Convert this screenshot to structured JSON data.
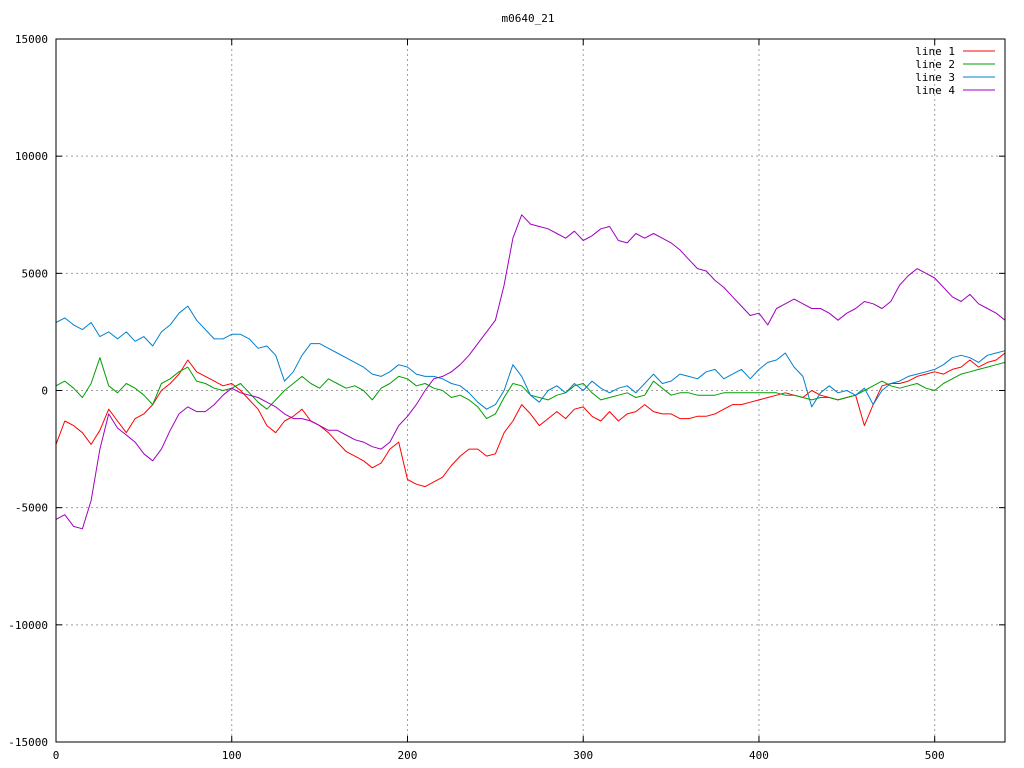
{
  "chart_data": {
    "type": "line",
    "title": "m0640_21",
    "xlabel": "",
    "ylabel": "",
    "xlim": [
      0,
      540
    ],
    "ylim": [
      -15000,
      15000
    ],
    "xticks": [
      0,
      100,
      200,
      300,
      400,
      500
    ],
    "yticks": [
      -15000,
      -10000,
      -5000,
      0,
      5000,
      10000,
      15000
    ],
    "grid": true,
    "legend_position": "top-right",
    "series": [
      {
        "name": "line 1",
        "color": "#ff0000",
        "x": [
          0,
          5,
          10,
          15,
          20,
          25,
          30,
          35,
          40,
          45,
          50,
          55,
          60,
          65,
          70,
          75,
          80,
          85,
          90,
          95,
          100,
          105,
          110,
          115,
          120,
          125,
          130,
          135,
          140,
          145,
          150,
          155,
          160,
          165,
          170,
          175,
          180,
          185,
          190,
          195,
          200,
          205,
          210,
          215,
          220,
          225,
          230,
          235,
          240,
          245,
          250,
          255,
          260,
          265,
          270,
          275,
          280,
          285,
          290,
          295,
          300,
          305,
          310,
          315,
          320,
          325,
          330,
          335,
          340,
          345,
          350,
          355,
          360,
          365,
          370,
          375,
          380,
          385,
          390,
          395,
          400,
          405,
          410,
          415,
          420,
          425,
          430,
          435,
          440,
          445,
          450,
          455,
          460,
          465,
          470,
          475,
          480,
          485,
          490,
          495,
          500,
          505,
          510,
          515,
          520,
          525,
          530,
          535,
          540
        ],
        "y": [
          -2300,
          -1300,
          -1500,
          -1800,
          -2300,
          -1700,
          -800,
          -1300,
          -1800,
          -1200,
          -1000,
          -600,
          0,
          300,
          700,
          1300,
          800,
          600,
          400,
          200,
          300,
          0,
          -400,
          -800,
          -1500,
          -1800,
          -1300,
          -1100,
          -800,
          -1300,
          -1500,
          -1800,
          -2200,
          -2600,
          -2800,
          -3000,
          -3300,
          -3100,
          -2500,
          -2200,
          -3800,
          -4000,
          -4100,
          -3900,
          -3700,
          -3200,
          -2800,
          -2500,
          -2500,
          -2800,
          -2700,
          -1800,
          -1300,
          -600,
          -1000,
          -1500,
          -1200,
          -900,
          -1200,
          -800,
          -700,
          -1100,
          -1300,
          -900,
          -1300,
          -1000,
          -900,
          -600,
          -900,
          -1000,
          -1000,
          -1200,
          -1200,
          -1100,
          -1100,
          -1000,
          -800,
          -600,
          -600,
          -500,
          -400,
          -300,
          -200,
          -100,
          -200,
          -300,
          0,
          -200,
          -300,
          -400,
          -300,
          -200,
          -1500,
          -600,
          200,
          300,
          300,
          400,
          600,
          700,
          800,
          700,
          900,
          1000,
          1300,
          1000,
          1200,
          1300,
          1600
        ]
      },
      {
        "name": "line 2",
        "color": "#00a000",
        "x": [
          0,
          5,
          10,
          15,
          20,
          25,
          30,
          35,
          40,
          45,
          50,
          55,
          60,
          65,
          70,
          75,
          80,
          85,
          90,
          95,
          100,
          105,
          110,
          115,
          120,
          125,
          130,
          135,
          140,
          145,
          150,
          155,
          160,
          165,
          170,
          175,
          180,
          185,
          190,
          195,
          200,
          205,
          210,
          215,
          220,
          225,
          230,
          235,
          240,
          245,
          250,
          255,
          260,
          265,
          270,
          275,
          280,
          285,
          290,
          295,
          300,
          305,
          310,
          315,
          320,
          325,
          330,
          335,
          340,
          345,
          350,
          355,
          360,
          365,
          370,
          375,
          380,
          385,
          390,
          395,
          400,
          405,
          410,
          415,
          420,
          425,
          430,
          435,
          440,
          445,
          450,
          455,
          460,
          465,
          470,
          475,
          480,
          485,
          490,
          495,
          500,
          505,
          510,
          515,
          520,
          525,
          530,
          535,
          540
        ],
        "y": [
          200,
          400,
          100,
          -300,
          300,
          1400,
          200,
          -100,
          300,
          100,
          -200,
          -600,
          300,
          500,
          800,
          1000,
          400,
          300,
          100,
          0,
          100,
          300,
          -100,
          -500,
          -800,
          -400,
          0,
          300,
          600,
          300,
          100,
          500,
          300,
          100,
          200,
          0,
          -400,
          100,
          300,
          600,
          500,
          200,
          300,
          100,
          0,
          -300,
          -200,
          -400,
          -700,
          -1200,
          -1000,
          -300,
          300,
          200,
          -200,
          -300,
          -400,
          -200,
          -100,
          200,
          300,
          -100,
          -400,
          -300,
          -200,
          -100,
          -300,
          -200,
          400,
          100,
          -200,
          -100,
          -100,
          -200,
          -200,
          -200,
          -100,
          -100,
          -100,
          -100,
          -100,
          -100,
          -100,
          -200,
          -200,
          -300,
          -400,
          -300,
          -300,
          -400,
          -300,
          -200,
          0,
          200,
          400,
          200,
          100,
          200,
          300,
          100,
          0,
          300,
          500,
          700,
          800,
          900,
          1000,
          1100,
          1200
        ]
      },
      {
        "name": "line 3",
        "color": "#0080d0",
        "x": [
          0,
          5,
          10,
          15,
          20,
          25,
          30,
          35,
          40,
          45,
          50,
          55,
          60,
          65,
          70,
          75,
          80,
          85,
          90,
          95,
          100,
          105,
          110,
          115,
          120,
          125,
          130,
          135,
          140,
          145,
          150,
          155,
          160,
          165,
          170,
          175,
          180,
          185,
          190,
          195,
          200,
          205,
          210,
          215,
          220,
          225,
          230,
          235,
          240,
          245,
          250,
          255,
          260,
          265,
          270,
          275,
          280,
          285,
          290,
          295,
          300,
          305,
          310,
          315,
          320,
          325,
          330,
          335,
          340,
          345,
          350,
          355,
          360,
          365,
          370,
          375,
          380,
          385,
          390,
          395,
          400,
          405,
          410,
          415,
          420,
          425,
          430,
          435,
          440,
          445,
          450,
          455,
          460,
          465,
          470,
          475,
          480,
          485,
          490,
          495,
          500,
          505,
          510,
          515,
          520,
          525,
          530,
          535,
          540
        ],
        "y": [
          2900,
          3100,
          2800,
          2600,
          2900,
          2300,
          2500,
          2200,
          2500,
          2100,
          2300,
          1900,
          2500,
          2800,
          3300,
          3600,
          3000,
          2600,
          2200,
          2200,
          2400,
          2400,
          2200,
          1800,
          1900,
          1500,
          400,
          800,
          1500,
          2000,
          2000,
          1800,
          1600,
          1400,
          1200,
          1000,
          700,
          600,
          800,
          1100,
          1000,
          700,
          600,
          600,
          500,
          300,
          200,
          -100,
          -500,
          -800,
          -600,
          0,
          1100,
          600,
          -200,
          -500,
          0,
          200,
          -100,
          300,
          0,
          400,
          100,
          -100,
          100,
          200,
          -100,
          300,
          700,
          300,
          400,
          700,
          600,
          500,
          800,
          900,
          500,
          700,
          900,
          500,
          900,
          1200,
          1300,
          1600,
          1000,
          600,
          -700,
          -100,
          200,
          -100,
          0,
          -200,
          100,
          -600,
          0,
          300,
          400,
          600,
          700,
          800,
          900,
          1100,
          1400,
          1500,
          1400,
          1200,
          1500,
          1600,
          1700
        ]
      },
      {
        "name": "line 4",
        "color": "#a000c0",
        "x": [
          0,
          5,
          10,
          15,
          20,
          25,
          30,
          35,
          40,
          45,
          50,
          55,
          60,
          65,
          70,
          75,
          80,
          85,
          90,
          95,
          100,
          105,
          110,
          115,
          120,
          125,
          130,
          135,
          140,
          145,
          150,
          155,
          160,
          165,
          170,
          175,
          180,
          185,
          190,
          195,
          200,
          205,
          210,
          215,
          220,
          225,
          230,
          235,
          240,
          245,
          250,
          255,
          260,
          265,
          270,
          275,
          280,
          285,
          290,
          295,
          300,
          305,
          310,
          315,
          320,
          325,
          330,
          335,
          340,
          345,
          350,
          355,
          360,
          365,
          370,
          375,
          380,
          385,
          390,
          395,
          400,
          405,
          410,
          415,
          420,
          425,
          430,
          435,
          440,
          445,
          450,
          455,
          460,
          465,
          470,
          475,
          480,
          485,
          490,
          495,
          500,
          505,
          510,
          515,
          520,
          525,
          530,
          535,
          540
        ],
        "y": [
          -5500,
          -5300,
          -5800,
          -5900,
          -4700,
          -2500,
          -1000,
          -1600,
          -1900,
          -2200,
          -2700,
          -3000,
          -2500,
          -1700,
          -1000,
          -700,
          -900,
          -900,
          -600,
          -200,
          100,
          -100,
          -200,
          -300,
          -500,
          -700,
          -1000,
          -1200,
          -1200,
          -1300,
          -1500,
          -1700,
          -1700,
          -1900,
          -2100,
          -2200,
          -2400,
          -2500,
          -2200,
          -1500,
          -1100,
          -600,
          0,
          500,
          600,
          800,
          1100,
          1500,
          2000,
          2500,
          3000,
          4500,
          6500,
          7500,
          7100,
          7000,
          6900,
          6700,
          6500,
          6800,
          6400,
          6600,
          6900,
          7000,
          6400,
          6300,
          6700,
          6500,
          6700,
          6500,
          6300,
          6000,
          5600,
          5200,
          5100,
          4700,
          4400,
          4000,
          3600,
          3200,
          3300,
          2800,
          3500,
          3700,
          3900,
          3700,
          3500,
          3500,
          3300,
          3000,
          3300,
          3500,
          3800,
          3700,
          3500,
          3800,
          4500,
          4900,
          5200,
          5000,
          4800,
          4400,
          4000,
          3800,
          4100,
          3700,
          3500,
          3300,
          3000
        ]
      }
    ]
  }
}
